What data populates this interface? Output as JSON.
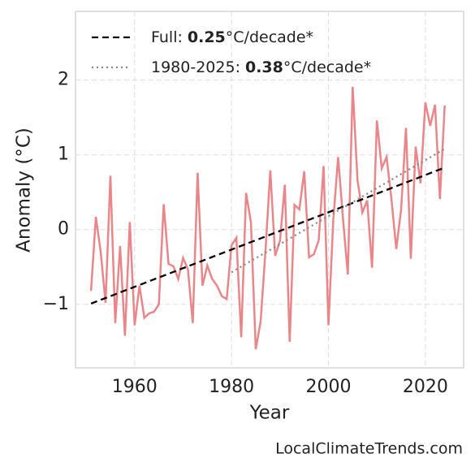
{
  "chart_data": {
    "type": "line",
    "xlabel": "Year",
    "ylabel": "Anomaly (°C)",
    "xlim": [
      1947.8,
      2027.9
    ],
    "ylim": [
      -1.85,
      2.92
    ],
    "xticks": [
      1960,
      1980,
      2000,
      2020
    ],
    "yticks": [
      {
        "value": -1,
        "label": "−1"
      },
      0,
      1,
      2
    ],
    "grid": true,
    "legend": "upper left",
    "source": "LocalClimateTrends.com",
    "series": [
      {
        "name": null,
        "color": "#e8868a",
        "dash": "solid",
        "x": [
          1951,
          1952,
          1953,
          1954,
          1955,
          1956,
          1957,
          1958,
          1959,
          1960,
          1961,
          1962,
          1963,
          1964,
          1965,
          1966,
          1967,
          1968,
          1969,
          1970,
          1971,
          1972,
          1973,
          1974,
          1975,
          1976,
          1977,
          1978,
          1979,
          1980,
          1981,
          1982,
          1983,
          1984,
          1985,
          1986,
          1987,
          1988,
          1989,
          1990,
          1991,
          1992,
          1993,
          1994,
          1995,
          1996,
          1997,
          1998,
          1999,
          2000,
          2001,
          2002,
          2003,
          2004,
          2005,
          2006,
          2007,
          2008,
          2009,
          2010,
          2011,
          2012,
          2013,
          2014,
          2015,
          2016,
          2017,
          2018,
          2019,
          2020,
          2021,
          2022,
          2023,
          2024
        ],
        "values": [
          -0.82,
          0.17,
          -0.3,
          -0.98,
          0.72,
          -1.25,
          -0.22,
          -1.42,
          0.1,
          -1.28,
          -0.75,
          -1.18,
          -1.12,
          -1.1,
          -1.0,
          0.34,
          -0.46,
          -0.49,
          -0.66,
          -0.38,
          -0.53,
          -1.25,
          0.76,
          -0.75,
          -0.48,
          -0.66,
          -0.75,
          -0.89,
          -0.93,
          -0.21,
          -0.11,
          -1.44,
          0.49,
          0.1,
          -1.6,
          -1.23,
          -0.29,
          0.79,
          -0.35,
          -0.15,
          0.6,
          -1.5,
          0.33,
          0.27,
          0.78,
          -0.37,
          -0.33,
          -0.14,
          0.85,
          -1.28,
          0.13,
          0.97,
          0.15,
          -0.6,
          1.91,
          0.66,
          0.23,
          0.39,
          -0.51,
          1.46,
          0.82,
          0.97,
          0.41,
          -0.26,
          0.27,
          1.36,
          -0.39,
          1.11,
          0.62,
          1.7,
          1.39,
          1.67,
          0.41,
          1.66
        ]
      },
      {
        "name": "Full:",
        "slope": 0.25,
        "slope_unit": "°C/decade*",
        "color": "#000000",
        "dash": "dashed",
        "x": [
          1951,
          2024
        ],
        "values": [
          -0.99,
          0.83
        ]
      },
      {
        "name": "1980-2025:",
        "slope": 0.38,
        "slope_unit": "°C/decade*",
        "color": "#888888",
        "dash": "dotted",
        "x": [
          1980,
          2024
        ],
        "values": [
          -0.57,
          1.08
        ]
      }
    ]
  }
}
